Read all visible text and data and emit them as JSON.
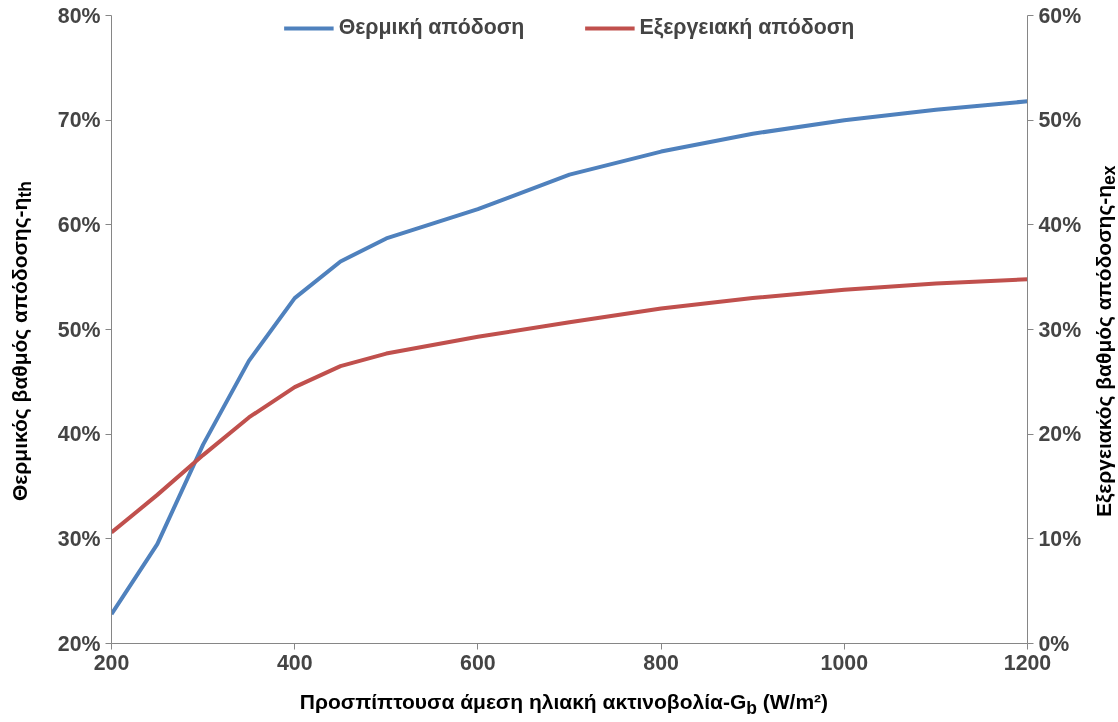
{
  "chart_data": {
    "type": "line",
    "xlabel": "Προσπίπτουσα άμεση ηλιακή ακτινοβολία-G$_{b}$ (W/m²)",
    "ylabel": "Θερμικός βαθμός απόδοσης-η$_{th}$",
    "y2label": "Εξεργειακός βαθμός απόδοσης-η$_{ex}$",
    "x": [
      200,
      250,
      300,
      350,
      400,
      450,
      500,
      600,
      700,
      800,
      900,
      1000,
      1100,
      1200
    ],
    "series": [
      {
        "name": "Θερμική απόδοση",
        "color": "#4f81bd",
        "values": [
          22.8,
          29.5,
          39,
          47,
          53,
          56.5,
          58.7,
          61.5,
          64.8,
          67,
          68.7,
          70,
          71,
          71.8
        ]
      },
      {
        "name": "Εξεργειακή απόδοση",
        "color": "#c0504d",
        "axis": "y2",
        "values": [
          10.6,
          14.2,
          18,
          21.6,
          24.5,
          26.5,
          27.7,
          29.3,
          30.7,
          32,
          33,
          33.8,
          34.4,
          34.8
        ]
      }
    ],
    "xlim": [
      200,
      1200
    ],
    "xticks": [
      200,
      400,
      600,
      800,
      1000,
      1200
    ],
    "ylim": [
      20,
      80
    ],
    "yticks": [
      {
        "value": 20,
        "label": "20%"
      },
      {
        "value": 30,
        "label": "30%"
      },
      {
        "value": 40,
        "label": "40%"
      },
      {
        "value": 50,
        "label": "50%"
      },
      {
        "value": 60,
        "label": "60%"
      },
      {
        "value": 70,
        "label": "70%"
      },
      {
        "value": 80,
        "label": "80%"
      }
    ],
    "y2lim": [
      0,
      60
    ],
    "y2ticks": [
      {
        "value": 0,
        "label": "0%"
      },
      {
        "value": 10,
        "label": "10%"
      },
      {
        "value": 20,
        "label": "20%"
      },
      {
        "value": 30,
        "label": "30%"
      },
      {
        "value": 40,
        "label": "40%"
      },
      {
        "value": 50,
        "label": "50%"
      },
      {
        "value": 60,
        "label": "60%"
      }
    ],
    "grid": false,
    "legend": "top",
    "marker": "none",
    "line_style": "solid"
  }
}
